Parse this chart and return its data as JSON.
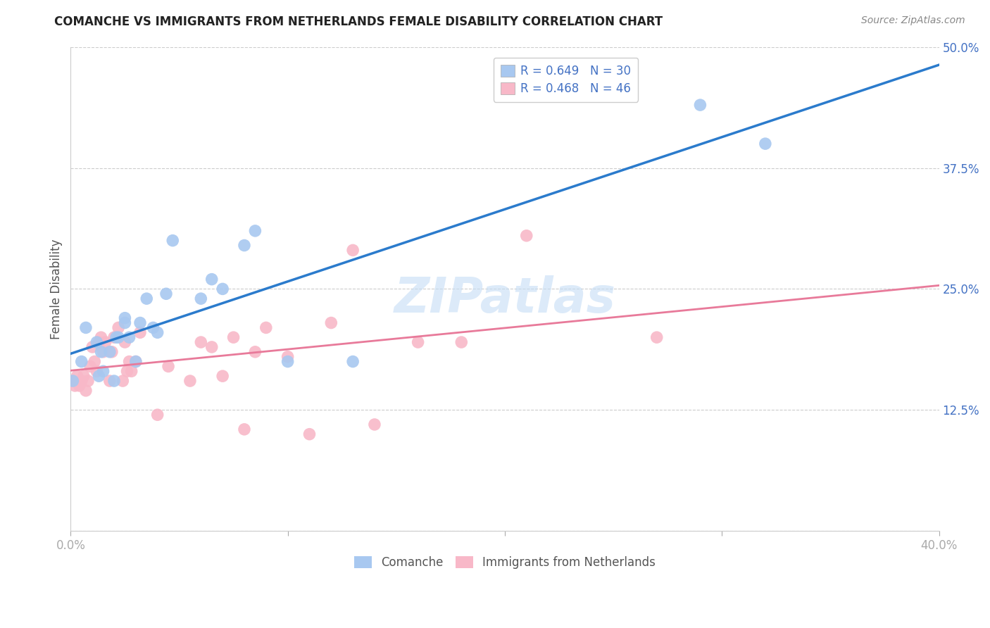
{
  "title": "COMANCHE VS IMMIGRANTS FROM NETHERLANDS FEMALE DISABILITY CORRELATION CHART",
  "source": "Source: ZipAtlas.com",
  "ylabel": "Female Disability",
  "watermark": "ZIPatlas",
  "xlim": [
    0.0,
    0.4
  ],
  "ylim": [
    0.0,
    0.5
  ],
  "xticks": [
    0.0,
    0.1,
    0.2,
    0.3,
    0.4
  ],
  "xtick_labels": [
    "0.0%",
    "",
    "",
    "",
    "40.0%"
  ],
  "yticks": [
    0.0,
    0.125,
    0.25,
    0.375,
    0.5
  ],
  "ytick_labels": [
    "",
    "12.5%",
    "25.0%",
    "37.5%",
    "50.0%"
  ],
  "legend1_label": "R = 0.649   N = 30",
  "legend2_label": "R = 0.468   N = 46",
  "color_blue": "#a8c8f0",
  "color_pink": "#f8b8c8",
  "color_blue_line": "#2b7bcc",
  "color_pink_line": "#e87a9a",
  "color_axis_tick": "#4472c4",
  "background_color": "#ffffff",
  "grid_color": "#cccccc",
  "comanche_x": [
    0.001,
    0.005,
    0.007,
    0.012,
    0.013,
    0.014,
    0.015,
    0.018,
    0.02,
    0.021,
    0.022,
    0.025,
    0.025,
    0.027,
    0.03,
    0.032,
    0.035,
    0.038,
    0.04,
    0.044,
    0.047,
    0.06,
    0.065,
    0.07,
    0.08,
    0.085,
    0.1,
    0.13,
    0.29,
    0.32
  ],
  "comanche_y": [
    0.155,
    0.175,
    0.21,
    0.195,
    0.16,
    0.185,
    0.165,
    0.185,
    0.155,
    0.2,
    0.2,
    0.22,
    0.215,
    0.2,
    0.175,
    0.215,
    0.24,
    0.21,
    0.205,
    0.245,
    0.3,
    0.24,
    0.26,
    0.25,
    0.295,
    0.31,
    0.175,
    0.175,
    0.44,
    0.4
  ],
  "netherlands_x": [
    0.001,
    0.002,
    0.003,
    0.004,
    0.005,
    0.006,
    0.007,
    0.008,
    0.009,
    0.01,
    0.011,
    0.012,
    0.013,
    0.014,
    0.015,
    0.016,
    0.018,
    0.019,
    0.02,
    0.022,
    0.024,
    0.025,
    0.026,
    0.027,
    0.028,
    0.03,
    0.032,
    0.04,
    0.045,
    0.055,
    0.06,
    0.065,
    0.07,
    0.075,
    0.08,
    0.085,
    0.09,
    0.1,
    0.11,
    0.12,
    0.13,
    0.14,
    0.16,
    0.18,
    0.21,
    0.27
  ],
  "netherlands_y": [
    0.155,
    0.15,
    0.16,
    0.15,
    0.155,
    0.16,
    0.145,
    0.155,
    0.17,
    0.19,
    0.175,
    0.165,
    0.195,
    0.2,
    0.185,
    0.195,
    0.155,
    0.185,
    0.2,
    0.21,
    0.155,
    0.195,
    0.165,
    0.175,
    0.165,
    0.175,
    0.205,
    0.12,
    0.17,
    0.155,
    0.195,
    0.19,
    0.16,
    0.2,
    0.105,
    0.185,
    0.21,
    0.18,
    0.1,
    0.215,
    0.29,
    0.11,
    0.195,
    0.195,
    0.305,
    0.2
  ],
  "legend_bottom_labels": [
    "Comanche",
    "Immigrants from Netherlands"
  ]
}
